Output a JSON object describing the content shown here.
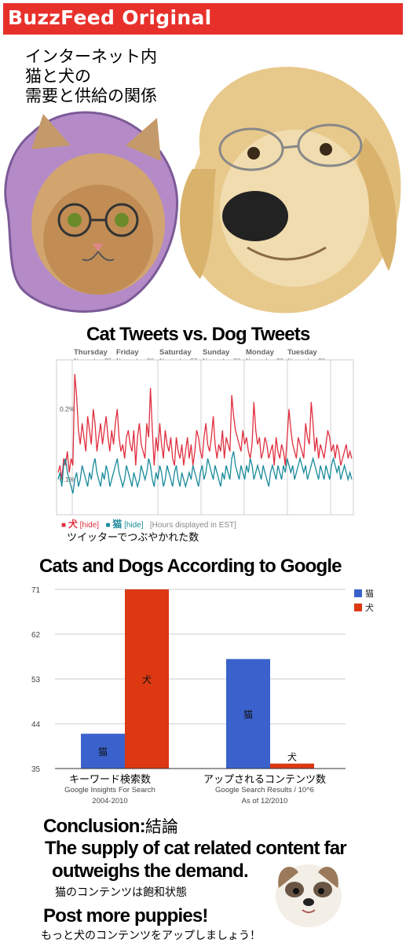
{
  "header": {
    "brand": "BuzzFeed Original",
    "bg_color": "#e8302b"
  },
  "title_jp": [
    "インターネット内",
    "猫と犬の",
    "需要と供給の関係"
  ],
  "illustrations": [
    "cat-with-glasses",
    "dog-with-glasses",
    "fluffy-puppy"
  ],
  "tweets_chart": {
    "caption_jp": "ツイッターでつぶやかれた数",
    "legend": {
      "dog_mark": "■",
      "dog_label": "犬",
      "dog_hide": "[hide]",
      "cat_mark": "■",
      "cat_label": "猫",
      "cat_hide": "[hide]",
      "note": "[Hours displayed in EST]"
    }
  },
  "google_chart": {
    "caption_x1_main": "キーワード検索数",
    "caption_x1_sub1": "Google Insights For Search",
    "caption_x1_sub2": "2004-2010",
    "caption_x2_main": "アップされるコンテンツ数",
    "caption_x2_sub1": "Google Search Results / 10^6",
    "caption_x2_sub2": "As of 12/2010"
  },
  "conclusion": {
    "heading": "Conclusion:",
    "heading_jp": "結論",
    "line1": "The supply of cat related content far",
    "line2": "outweighs the demand.",
    "line2_jp": "猫のコンテンツは飽和状態",
    "line3": "Post more puppies!",
    "line3_jp": "もっと犬のコンテンツをアップしましょう！"
  },
  "chart_data": [
    {
      "type": "line",
      "title": "Cat Tweets vs. Dog Tweets",
      "x_labels": [
        {
          "day": "Thursday",
          "date": "November 25"
        },
        {
          "day": "Friday",
          "date": "November 26"
        },
        {
          "day": "Saturday",
          "date": "November 27"
        },
        {
          "day": "Sunday",
          "date": "November 28"
        },
        {
          "day": "Monday",
          "date": "November 29"
        },
        {
          "day": "Tuesday",
          "date": "November 30"
        }
      ],
      "y_ticks": [
        "0.2%",
        "0.1%"
      ],
      "series": [
        {
          "name": "犬",
          "color": "#e02f3f",
          "values": [
            0.11,
            0.12,
            0.1,
            0.13,
            0.12,
            0.14,
            0.11,
            0.13,
            0.12,
            0.25,
            0.22,
            0.17,
            0.15,
            0.18,
            0.16,
            0.14,
            0.19,
            0.17,
            0.15,
            0.2,
            0.18,
            0.14,
            0.16,
            0.18,
            0.15,
            0.17,
            0.19,
            0.16,
            0.14,
            0.17,
            0.15,
            0.18,
            0.2,
            0.16,
            0.14,
            0.15,
            0.13,
            0.16,
            0.17,
            0.15,
            0.14,
            0.17,
            0.12,
            0.16,
            0.18,
            0.15,
            0.14,
            0.13,
            0.18,
            0.16,
            0.23,
            0.17,
            0.12,
            0.16,
            0.14,
            0.18,
            0.15,
            0.13,
            0.17,
            0.15,
            0.14,
            0.16,
            0.13,
            0.12,
            0.16,
            0.14,
            0.13,
            0.15,
            0.12,
            0.14,
            0.16,
            0.13,
            0.15,
            0.12,
            0.14,
            0.17,
            0.16,
            0.14,
            0.13,
            0.16,
            0.18,
            0.15,
            0.14,
            0.16,
            0.19,
            0.15,
            0.13,
            0.15,
            0.14,
            0.17,
            0.13,
            0.16,
            0.15,
            0.14,
            0.22,
            0.19,
            0.17,
            0.16,
            0.15,
            0.14,
            0.17,
            0.15,
            0.16,
            0.14,
            0.13,
            0.15,
            0.21,
            0.17,
            0.15,
            0.16,
            0.13,
            0.14,
            0.16,
            0.15,
            0.13,
            0.14,
            0.15,
            0.12,
            0.16,
            0.14,
            0.13,
            0.15,
            0.14,
            0.12,
            0.16,
            0.2,
            0.17,
            0.15,
            0.14,
            0.13,
            0.16,
            0.15,
            0.14,
            0.13,
            0.18,
            0.16,
            0.15,
            0.21,
            0.18,
            0.14,
            0.16,
            0.13,
            0.15,
            0.14,
            0.13,
            0.15,
            0.17,
            0.16,
            0.14,
            0.15,
            0.13,
            0.15,
            0.14,
            0.12,
            0.13,
            0.14,
            0.15,
            0.13,
            0.14,
            0.13
          ]
        },
        {
          "name": "猫",
          "color": "#1a8a9a",
          "values": [
            0.1,
            0.11,
            0.09,
            0.12,
            0.13,
            0.11,
            0.1,
            0.09,
            0.08,
            0.1,
            0.11,
            0.09,
            0.1,
            0.12,
            0.11,
            0.1,
            0.09,
            0.11,
            0.1,
            0.12,
            0.13,
            0.11,
            0.1,
            0.09,
            0.11,
            0.1,
            0.12,
            0.11,
            0.09,
            0.1,
            0.11,
            0.12,
            0.13,
            0.11,
            0.1,
            0.09,
            0.1,
            0.12,
            0.11,
            0.1,
            0.09,
            0.11,
            0.1,
            0.09,
            0.1,
            0.12,
            0.11,
            0.1,
            0.11,
            0.13,
            0.12,
            0.1,
            0.09,
            0.11,
            0.1,
            0.12,
            0.11,
            0.09,
            0.1,
            0.12,
            0.11,
            0.1,
            0.09,
            0.11,
            0.12,
            0.1,
            0.09,
            0.11,
            0.1,
            0.09,
            0.1,
            0.11,
            0.1,
            0.12,
            0.11,
            0.1,
            0.09,
            0.11,
            0.12,
            0.1,
            0.11,
            0.13,
            0.12,
            0.11,
            0.1,
            0.12,
            0.11,
            0.1,
            0.09,
            0.11,
            0.1,
            0.12,
            0.11,
            0.1,
            0.13,
            0.14,
            0.12,
            0.11,
            0.1,
            0.12,
            0.11,
            0.1,
            0.12,
            0.11,
            0.13,
            0.12,
            0.1,
            0.11,
            0.12,
            0.11,
            0.1,
            0.12,
            0.11,
            0.1,
            0.09,
            0.11,
            0.12,
            0.11,
            0.1,
            0.12,
            0.11,
            0.1,
            0.12,
            0.11,
            0.13,
            0.12,
            0.11,
            0.12,
            0.1,
            0.11,
            0.12,
            0.13,
            0.12,
            0.11,
            0.12,
            0.1,
            0.11,
            0.12,
            0.13,
            0.12,
            0.11,
            0.1,
            0.12,
            0.11,
            0.1,
            0.12,
            0.11,
            0.1,
            0.12,
            0.13,
            0.12,
            0.11,
            0.12,
            0.1,
            0.11,
            0.12,
            0.11,
            0.1,
            0.11,
            0.1
          ]
        }
      ]
    },
    {
      "type": "bar",
      "title": "Cats and Dogs According to Google",
      "categories": [
        "キーワード検索数",
        "アップされるコンテンツ数"
      ],
      "series": [
        {
          "name": "猫",
          "color": "#3b62cc",
          "values": [
            42,
            57
          ]
        },
        {
          "name": "犬",
          "color": "#dc3912",
          "values": [
            71,
            36
          ]
        }
      ],
      "ylim": [
        35,
        71
      ],
      "yticks": [
        35,
        44,
        53,
        62,
        71
      ],
      "grid": true,
      "legend": "right"
    }
  ]
}
